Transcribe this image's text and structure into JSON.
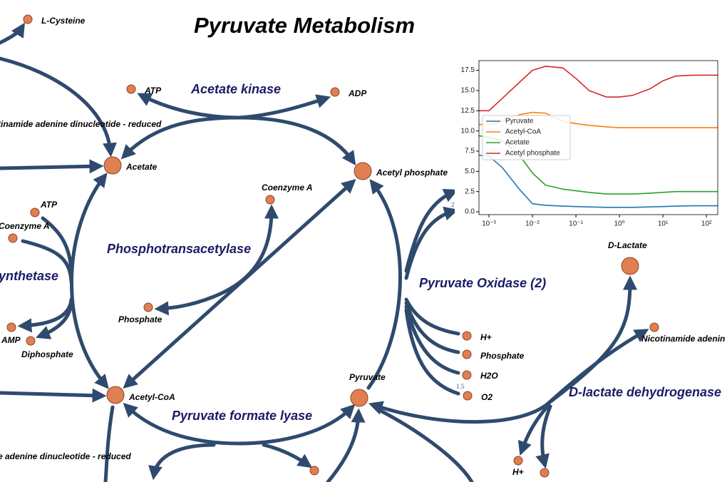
{
  "title": "Pyruvate Metabolism",
  "nodes": [
    {
      "label": "L-Cysteine"
    },
    {
      "label": "ATP"
    },
    {
      "label": "ADP"
    },
    {
      "label": "tinamide adenine dinucleotide - reduced"
    },
    {
      "label": "Acetate"
    },
    {
      "label": "Acetyl phosphate"
    },
    {
      "label": "Coenzyme A"
    },
    {
      "label": "ATP"
    },
    {
      "label": "Coenzyme A"
    },
    {
      "label": "Phosphate"
    },
    {
      "label": "AMP"
    },
    {
      "label": "Diphosphate"
    },
    {
      "label": "Acetyl-CoA"
    },
    {
      "label": "Pyruvate"
    },
    {
      "label": "H+"
    },
    {
      "label": "Phosphate"
    },
    {
      "label": "H2O"
    },
    {
      "label": "O2"
    },
    {
      "label": "D-Lactate"
    },
    {
      "label": "Nicotinamide adenin"
    },
    {
      "label": "H+"
    },
    {
      "label": "e adenine dinucleotide - reduced"
    }
  ],
  "enzymes": [
    "Acetate kinase",
    "Phosphotransacetylase",
    "ynthetase",
    "Pyruvate Oxidase (2)",
    "D-lactate dehydrogenase",
    "Pyruvate formate lyase"
  ],
  "edge_labels": [
    "2",
    "1.5"
  ],
  "chart_data": {
    "type": "line",
    "x": [
      0.00059,
      0.001,
      0.002,
      0.005,
      0.01,
      0.02,
      0.05,
      0.1,
      0.2,
      0.5,
      1,
      2,
      5,
      10,
      20,
      50,
      100,
      182
    ],
    "series": [
      {
        "name": "Pyruvate",
        "color": "#1f77b4",
        "values": [
          7.0,
          6.9,
          5.5,
          2.8,
          1.0,
          0.8,
          0.7,
          0.65,
          0.6,
          0.55,
          0.55,
          0.55,
          0.6,
          0.65,
          0.7,
          0.75,
          0.75,
          0.75
        ]
      },
      {
        "name": "Acetyl-CoA",
        "color": "#ff7f0e",
        "values": [
          10.8,
          10.8,
          11.2,
          12.0,
          12.3,
          12.2,
          11.2,
          10.9,
          10.7,
          10.5,
          10.4,
          10.4,
          10.4,
          10.4,
          10.4,
          10.4,
          10.4,
          10.4
        ]
      },
      {
        "name": "Acetate",
        "color": "#2ca02c",
        "values": [
          9.4,
          9.2,
          8.8,
          7.0,
          4.8,
          3.3,
          2.8,
          2.6,
          2.4,
          2.2,
          2.2,
          2.2,
          2.3,
          2.4,
          2.5,
          2.5,
          2.5,
          2.5
        ]
      },
      {
        "name": "Acetyl phosphate",
        "color": "#d62728",
        "values": [
          12.5,
          12.5,
          14.0,
          16.0,
          17.5,
          18.0,
          17.8,
          16.5,
          15.0,
          14.2,
          14.2,
          14.4,
          15.2,
          16.2,
          16.8,
          16.9,
          16.9,
          16.9
        ]
      }
    ],
    "xscale": "log",
    "xlim": [
      0.00059,
      182
    ],
    "ylim": [
      -0.35,
      18.7
    ],
    "xticks": [
      {
        "value": 0.001,
        "label": "10⁻³"
      },
      {
        "value": 0.01,
        "label": "10⁻²"
      },
      {
        "value": 0.1,
        "label": "10⁻¹"
      },
      {
        "value": 1,
        "label": "10⁰"
      },
      {
        "value": 10,
        "label": "10¹"
      },
      {
        "value": 100,
        "label": "10²"
      }
    ],
    "yticks": [
      {
        "value": 0,
        "label": "0.0"
      },
      2.5,
      {
        "value": 5,
        "label": "5.0"
      },
      7.5,
      {
        "value": 10,
        "label": "10.0"
      },
      12.5,
      {
        "value": 15,
        "label": "15.0"
      },
      17.5
    ],
    "legend": "center left"
  }
}
